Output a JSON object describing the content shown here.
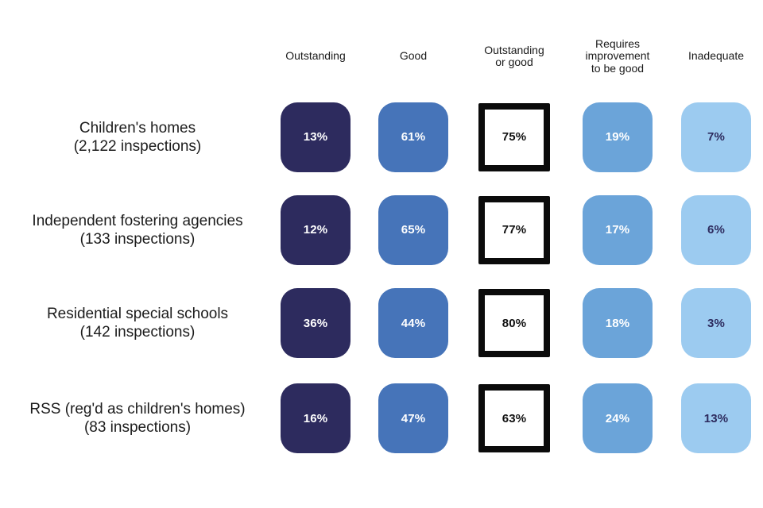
{
  "chart_data": {
    "type": "table",
    "title": "",
    "columns": [
      "Outstanding",
      "Good",
      "Outstanding or good",
      "Requires improvement to be good",
      "Inadequate"
    ],
    "rows": [
      {
        "label": "Children's homes",
        "sublabel": "(2,122 inspections)",
        "values": [
          "13%",
          "61%",
          "75%",
          "19%",
          "7%"
        ],
        "values_numeric": [
          13,
          61,
          75,
          19,
          7
        ]
      },
      {
        "label": "Independent fostering agencies",
        "sublabel": "(133 inspections)",
        "values": [
          "12%",
          "65%",
          "77%",
          "17%",
          "6%"
        ],
        "values_numeric": [
          12,
          65,
          77,
          17,
          6
        ]
      },
      {
        "label": "Residential special schools",
        "sublabel": "(142 inspections)",
        "values": [
          "36%",
          "44%",
          "80%",
          "18%",
          "3%"
        ],
        "values_numeric": [
          36,
          44,
          80,
          18,
          3
        ]
      },
      {
        "label": "RSS (reg'd as children's homes)",
        "sublabel": "(83 inspections)",
        "values": [
          "16%",
          "47%",
          "63%",
          "24%",
          "13%"
        ],
        "values_numeric": [
          16,
          47,
          63,
          24,
          13
        ]
      }
    ],
    "colors": {
      "outstanding": "#2d2b5e",
      "good": "#4674b9",
      "outstanding_or_good_background": "#ffffff",
      "outstanding_or_good_border": "#0b0b0b",
      "requires_improvement": "#6ba4d9",
      "inadequate": "#9ccbf0",
      "inadequate_text": "#2d2b5e"
    },
    "grid": false,
    "legend_position": "none"
  }
}
